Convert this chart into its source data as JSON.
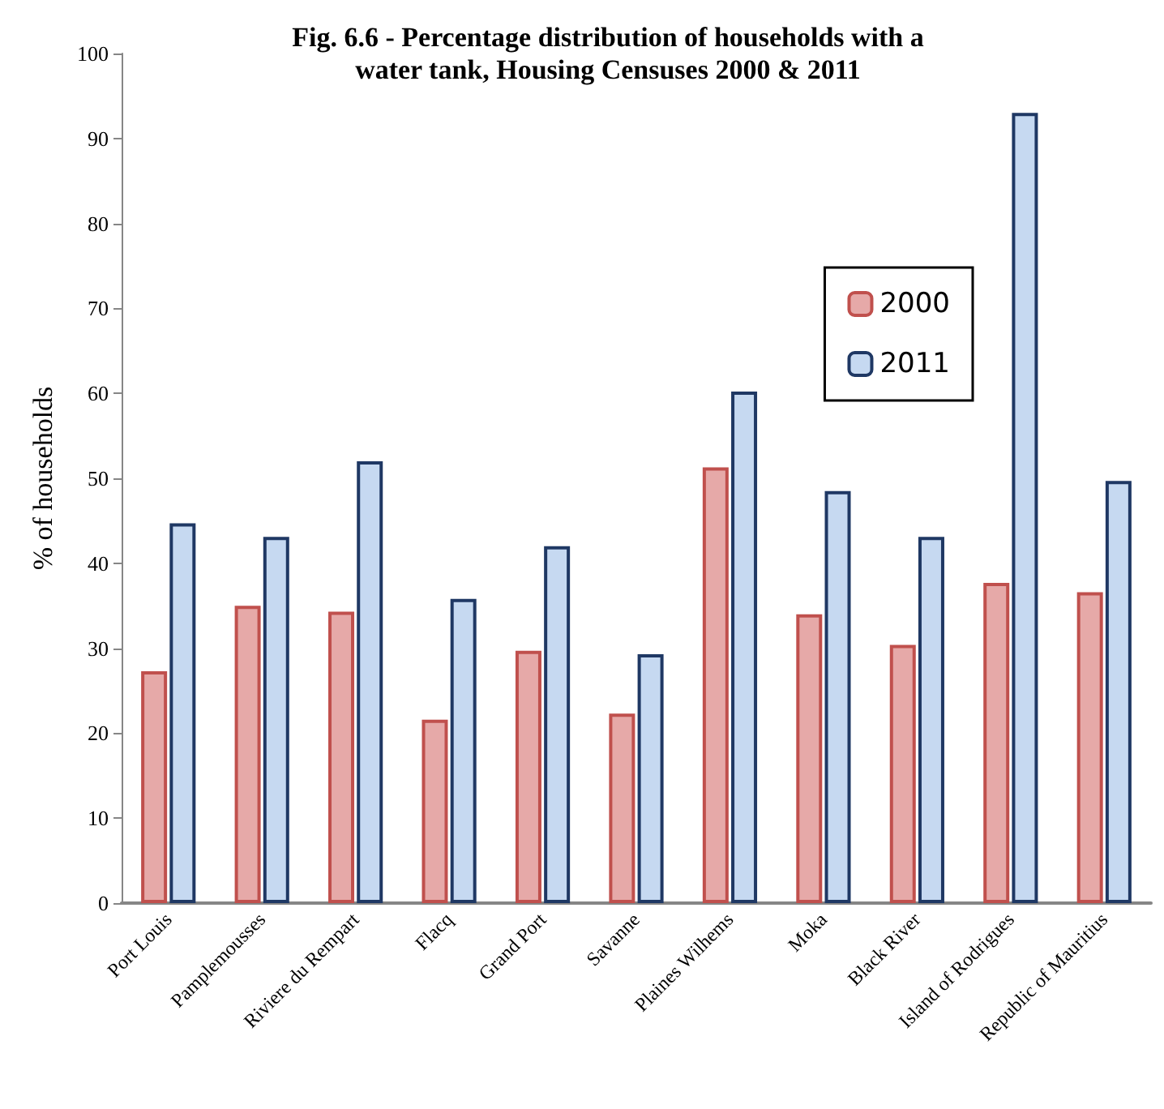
{
  "chart_data": {
    "type": "bar",
    "title": "Fig. 6.6 - Percentage distribution of households with a\nwater tank, Housing Censuses 2000 & 2011",
    "ylabel": "% of households",
    "categories": [
      "Port Louis",
      "Pamplemousses",
      "Riviere du Rempart",
      "Flacq",
      "Grand Port",
      "Savanne",
      "Plaines Wilhems",
      "Moka",
      "Black River",
      "Island of Rodrigues",
      "Republic of Mauritius"
    ],
    "series": [
      {
        "name": "2000",
        "color": "#e6a9a8",
        "values": [
          27.3,
          35.0,
          34.3,
          21.6,
          29.7,
          22.3,
          51.3,
          34.0,
          30.4,
          37.7,
          36.6
        ]
      },
      {
        "name": "2011",
        "color": "#c6d9f1",
        "values": [
          44.7,
          43.1,
          52.0,
          35.8,
          42.0,
          29.3,
          60.2,
          48.5,
          43.1,
          93.0,
          49.7
        ]
      }
    ],
    "ylim": [
      0,
      100
    ],
    "yticks": [
      0,
      10,
      20,
      30,
      40,
      50,
      60,
      70,
      80,
      90,
      100
    ],
    "grid": false,
    "legend": "top right"
  }
}
